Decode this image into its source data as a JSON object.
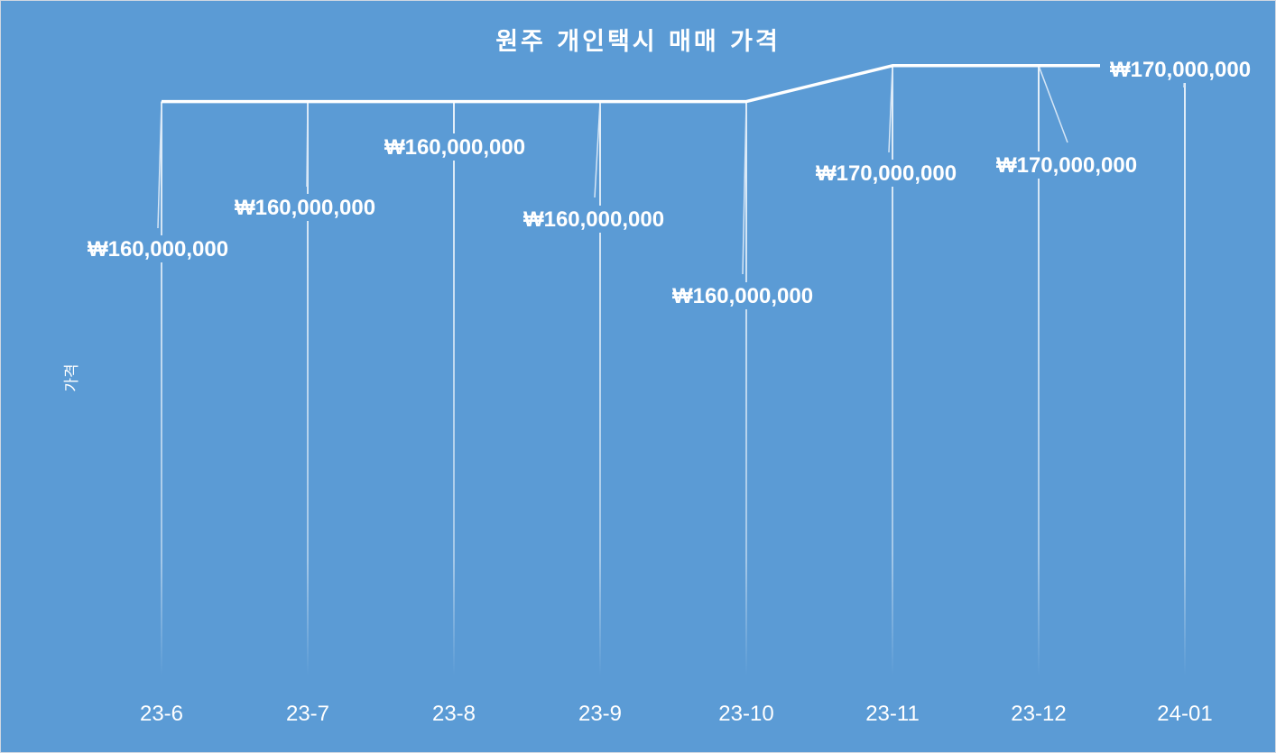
{
  "chart_data": {
    "type": "line",
    "title": "원주 개인택시 매매 가격",
    "xlabel": "",
    "ylabel": "가격",
    "categories": [
      "23-6",
      "23-7",
      "23-8",
      "23-9",
      "23-10",
      "23-11",
      "23-12",
      "24-01"
    ],
    "series": [
      {
        "values": [
          160000000,
          160000000,
          160000000,
          160000000,
          160000000,
          170000000,
          170000000,
          170000000
        ]
      }
    ],
    "data_labels": [
      "₩160,000,000",
      "₩160,000,000",
      "₩160,000,000",
      "₩160,000,000",
      "₩160,000,000",
      "₩170,000,000",
      "₩170,000,000",
      "₩170,000,000"
    ],
    "ylim": [
      0,
      178000000
    ],
    "grid": false,
    "drop_lines": true,
    "legend": "none",
    "colors": {
      "background": "#5b9bd5",
      "line": "#ffffff",
      "text": "#ffffff"
    }
  }
}
